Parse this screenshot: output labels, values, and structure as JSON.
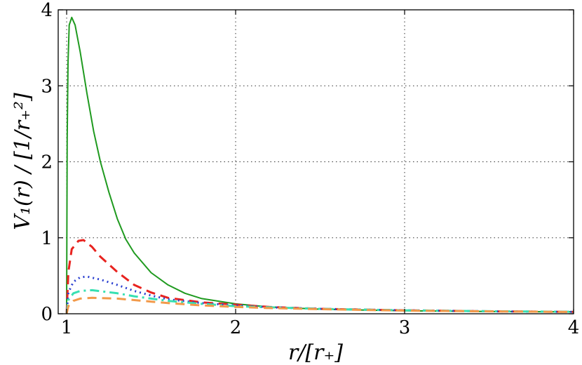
{
  "chart_data": {
    "type": "line",
    "xlabel": "r/[r₊]",
    "ylabel": "V₁(r) / [1/r₊²]",
    "xlim": [
      0.95,
      4
    ],
    "ylim": [
      0,
      4
    ],
    "xticks": [
      1,
      2,
      3,
      4
    ],
    "yticks": [
      0,
      1,
      2,
      3,
      4
    ],
    "xtick_labels": [
      "1",
      "2",
      "3",
      "4"
    ],
    "ytick_labels": [
      "0",
      "1",
      "2",
      "3",
      "4"
    ],
    "grid": true,
    "legend": "none",
    "series": [
      {
        "color": "#1f9a1f",
        "style": "solid",
        "points": [
          [
            1.0,
            0.0
          ],
          [
            1.003,
            2.3
          ],
          [
            1.008,
            3.3
          ],
          [
            1.015,
            3.8
          ],
          [
            1.03,
            3.9
          ],
          [
            1.05,
            3.8
          ],
          [
            1.08,
            3.45
          ],
          [
            1.12,
            2.9
          ],
          [
            1.16,
            2.4
          ],
          [
            1.2,
            2.0
          ],
          [
            1.25,
            1.6
          ],
          [
            1.3,
            1.25
          ],
          [
            1.35,
            0.98
          ],
          [
            1.4,
            0.8
          ],
          [
            1.5,
            0.54
          ],
          [
            1.6,
            0.38
          ],
          [
            1.7,
            0.27
          ],
          [
            1.8,
            0.2
          ],
          [
            2.0,
            0.13
          ],
          [
            2.2,
            0.09
          ],
          [
            2.5,
            0.06
          ],
          [
            3.0,
            0.04
          ],
          [
            3.5,
            0.03
          ],
          [
            4.0,
            0.025
          ]
        ]
      },
      {
        "color": "#e8231f",
        "style": "dashed",
        "points": [
          [
            1.0,
            0.0
          ],
          [
            1.01,
            0.55
          ],
          [
            1.03,
            0.85
          ],
          [
            1.07,
            0.96
          ],
          [
            1.1,
            0.97
          ],
          [
            1.15,
            0.88
          ],
          [
            1.2,
            0.75
          ],
          [
            1.3,
            0.55
          ],
          [
            1.4,
            0.38
          ],
          [
            1.5,
            0.28
          ],
          [
            1.6,
            0.21
          ],
          [
            1.8,
            0.15
          ],
          [
            2.0,
            0.12
          ],
          [
            2.2,
            0.09
          ],
          [
            2.5,
            0.065
          ],
          [
            3.0,
            0.045
          ],
          [
            3.5,
            0.032
          ],
          [
            4.0,
            0.025
          ]
        ]
      },
      {
        "color": "#2a3fd0",
        "style": "dotted",
        "points": [
          [
            1.0,
            0.0
          ],
          [
            1.01,
            0.28
          ],
          [
            1.04,
            0.42
          ],
          [
            1.08,
            0.48
          ],
          [
            1.12,
            0.49
          ],
          [
            1.2,
            0.45
          ],
          [
            1.3,
            0.38
          ],
          [
            1.4,
            0.3
          ],
          [
            1.5,
            0.24
          ],
          [
            1.6,
            0.19
          ],
          [
            1.8,
            0.14
          ],
          [
            2.0,
            0.11
          ],
          [
            2.2,
            0.085
          ],
          [
            2.5,
            0.065
          ],
          [
            3.0,
            0.045
          ],
          [
            3.5,
            0.032
          ],
          [
            4.0,
            0.025
          ]
        ]
      },
      {
        "color": "#37e0b2",
        "style": "dashdot",
        "points": [
          [
            1.0,
            0.0
          ],
          [
            1.01,
            0.18
          ],
          [
            1.04,
            0.27
          ],
          [
            1.08,
            0.3
          ],
          [
            1.15,
            0.31
          ],
          [
            1.3,
            0.27
          ],
          [
            1.4,
            0.23
          ],
          [
            1.5,
            0.2
          ],
          [
            1.6,
            0.17
          ],
          [
            1.8,
            0.13
          ],
          [
            2.0,
            0.1
          ],
          [
            2.2,
            0.085
          ],
          [
            2.5,
            0.065
          ],
          [
            3.0,
            0.045
          ],
          [
            3.5,
            0.033
          ],
          [
            4.0,
            0.026
          ]
        ]
      },
      {
        "color": "#f29a4a",
        "style": "dashed",
        "points": [
          [
            1.0,
            0.0
          ],
          [
            1.01,
            0.1
          ],
          [
            1.04,
            0.17
          ],
          [
            1.08,
            0.2
          ],
          [
            1.15,
            0.21
          ],
          [
            1.3,
            0.2
          ],
          [
            1.4,
            0.18
          ],
          [
            1.5,
            0.16
          ],
          [
            1.6,
            0.14
          ],
          [
            1.8,
            0.11
          ],
          [
            2.0,
            0.09
          ],
          [
            2.2,
            0.075
          ],
          [
            2.5,
            0.06
          ],
          [
            3.0,
            0.042
          ],
          [
            3.5,
            0.031
          ],
          [
            4.0,
            0.024
          ]
        ]
      }
    ]
  }
}
